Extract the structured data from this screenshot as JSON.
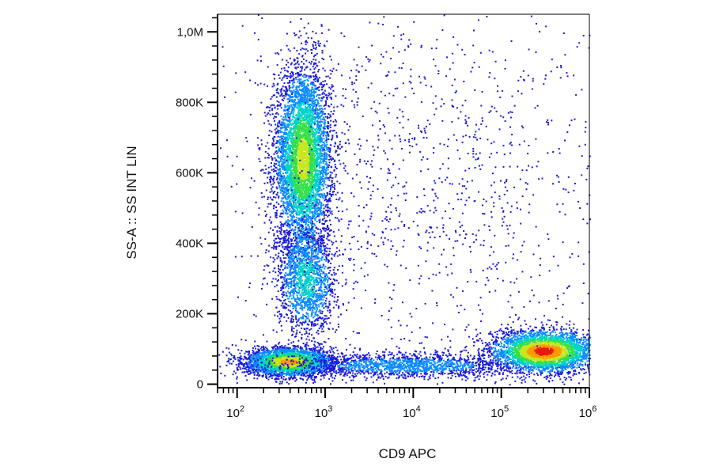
{
  "chart_data": {
    "type": "scatter",
    "subtype": "flow-cytometry-density-dot-plot",
    "xlabel": "CD9 APC",
    "ylabel": "SS-A :: SS INT LIN",
    "x_scale": "log",
    "y_scale": "linear",
    "xlim": [
      60,
      1000000
    ],
    "ylim": [
      -10000,
      1050000
    ],
    "x_ticks": [
      {
        "value": 100,
        "base": "10",
        "exp": "2"
      },
      {
        "value": 1000,
        "base": "10",
        "exp": "3"
      },
      {
        "value": 10000,
        "base": "10",
        "exp": "4"
      },
      {
        "value": 100000,
        "base": "10",
        "exp": "5"
      },
      {
        "value": 1000000,
        "base": "10",
        "exp": "6"
      }
    ],
    "y_ticks": [
      {
        "value": 0,
        "label": "0"
      },
      {
        "value": 200000,
        "label": "200K"
      },
      {
        "value": 400000,
        "label": "400K"
      },
      {
        "value": 600000,
        "label": "600K"
      },
      {
        "value": 800000,
        "label": "800K"
      },
      {
        "value": 1000000,
        "label": "1,0M"
      }
    ],
    "grid": false,
    "legend": "none",
    "density_colors": [
      "#1b1bd6",
      "#0a8cff",
      "#00d2c8",
      "#35e04a",
      "#c8e61e",
      "#ff9a00",
      "#e8190d"
    ],
    "populations": [
      {
        "x_center": 550,
        "y_center": 640000,
        "x_spread_decades": 0.16,
        "y_spread": 130000,
        "points": 5200,
        "peak_level": 4
      },
      {
        "x_center": 600,
        "y_center": 300000,
        "x_spread_decades": 0.17,
        "y_spread": 80000,
        "points": 1600,
        "peak_level": 2
      },
      {
        "x_center": 380,
        "y_center": 65000,
        "x_spread_decades": 0.25,
        "y_spread": 20000,
        "points": 3000,
        "peak_level": 5
      },
      {
        "x_center": 8000,
        "y_center": 55000,
        "x_spread_decades": 0.75,
        "y_spread": 18000,
        "points": 1700,
        "peak_level": 1
      },
      {
        "x_center": 300000,
        "y_center": 95000,
        "x_spread_decades": 0.3,
        "y_spread": 30000,
        "points": 3200,
        "peak_level": 6
      },
      {
        "x_center": 15000,
        "y_center": 600000,
        "x_spread_decades": 1.3,
        "y_spread": 300000,
        "points": 1400,
        "peak_level": 0
      }
    ]
  }
}
